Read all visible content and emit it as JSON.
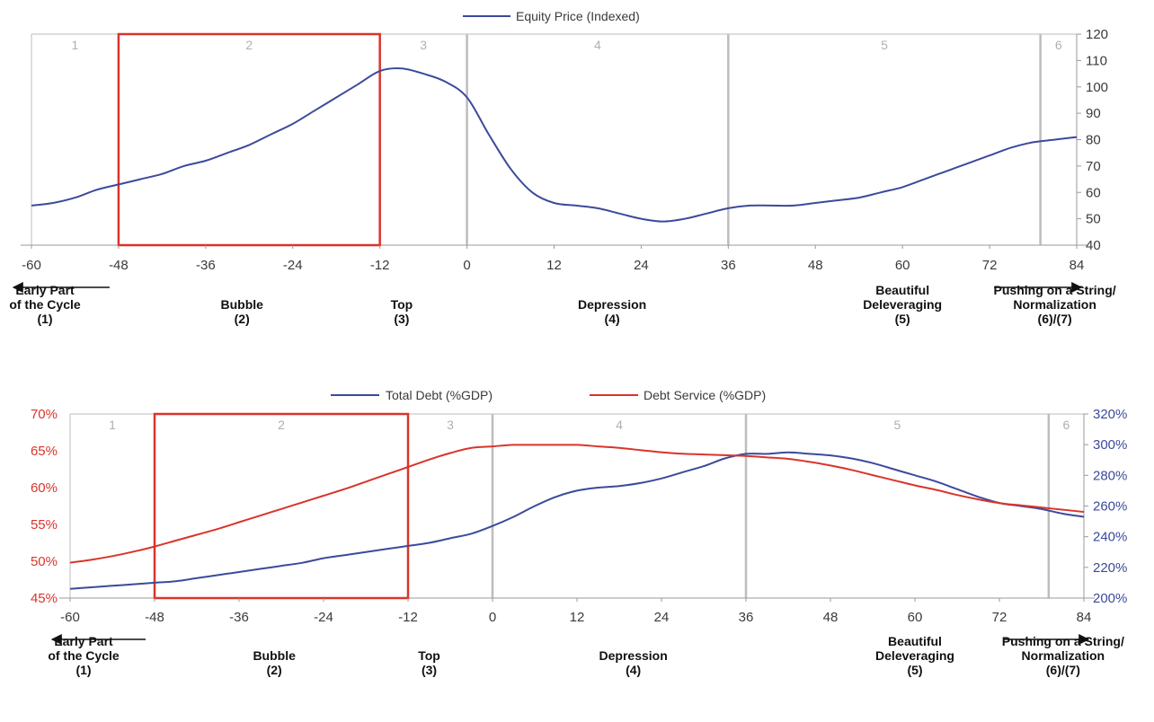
{
  "chart_data": [
    {
      "type": "line",
      "legend_placement": "top-center",
      "grid": false,
      "x": [
        -60,
        -57,
        -54,
        -51,
        -48,
        -45,
        -42,
        -39,
        -36,
        -33,
        -30,
        -27,
        -24,
        -21,
        -18,
        -15,
        -12,
        -9,
        -6,
        -3,
        0,
        3,
        6,
        9,
        12,
        15,
        18,
        21,
        24,
        27,
        30,
        33,
        36,
        39,
        42,
        45,
        48,
        51,
        54,
        57,
        60,
        63,
        66,
        69,
        72,
        75,
        78,
        81,
        84
      ],
      "series": [
        {
          "name": "Equity Price (Indexed)",
          "color": "#3c4a9b",
          "axis": "right",
          "values": [
            55,
            56,
            58,
            61,
            63,
            65,
            67,
            70,
            72,
            75,
            78,
            82,
            86,
            91,
            96,
            101,
            106,
            107,
            105,
            102,
            96,
            82,
            69,
            60,
            56,
            55,
            54,
            52,
            50,
            49,
            50,
            52,
            54,
            55,
            55,
            55,
            56,
            57,
            58,
            60,
            62,
            65,
            68,
            71,
            74,
            77,
            79,
            80,
            81
          ]
        }
      ],
      "xlim": [
        -60,
        84
      ],
      "xticks": [
        -60,
        -48,
        -36,
        -24,
        -12,
        0,
        12,
        24,
        36,
        48,
        60,
        72,
        84
      ],
      "y_right_lim": [
        40,
        120
      ],
      "y_right_ticks": [
        40,
        50,
        60,
        70,
        80,
        90,
        100,
        110,
        120
      ],
      "phases": [
        {
          "number": "1",
          "start": -60,
          "end": -48
        },
        {
          "number": "2",
          "start": -48,
          "end": -12
        },
        {
          "number": "3",
          "start": -12,
          "end": 0
        },
        {
          "number": "4",
          "start": 0,
          "end": 36
        },
        {
          "number": "5",
          "start": 36,
          "end": 79
        },
        {
          "number": "6",
          "start": 79,
          "end": 84
        }
      ],
      "highlight": {
        "start": -48,
        "end": -12,
        "color": "#d9342b"
      },
      "stage_labels": [
        {
          "lines": [
            "Early Part",
            "of the Cycle",
            "(1)"
          ],
          "x": -51,
          "arrow": "left"
        },
        {
          "lines": [
            "Bubble",
            "(2)"
          ],
          "x": -31
        },
        {
          "lines": [
            "Top",
            "(3)"
          ],
          "x": -9
        },
        {
          "lines": [
            "Depression",
            "(4)"
          ],
          "x": 20
        },
        {
          "lines": [
            "Beautiful",
            "Deleveraging",
            "(5)"
          ],
          "x": 60
        },
        {
          "lines": [
            "Pushing on a String/",
            "Normalization",
            "(6)/(7)"
          ],
          "x": 79,
          "arrow": "right"
        }
      ]
    },
    {
      "type": "line",
      "legend_placement": "top-center",
      "grid": false,
      "x": [
        -60,
        -57,
        -54,
        -51,
        -48,
        -45,
        -42,
        -39,
        -36,
        -33,
        -30,
        -27,
        -24,
        -21,
        -18,
        -15,
        -12,
        -9,
        -6,
        -3,
        0,
        3,
        6,
        9,
        12,
        15,
        18,
        21,
        24,
        27,
        30,
        33,
        36,
        39,
        42,
        45,
        48,
        51,
        54,
        57,
        60,
        63,
        66,
        69,
        72,
        75,
        78,
        81,
        84
      ],
      "series": [
        {
          "name": "Total Debt (%GDP)",
          "color": "#3c4a9b",
          "axis": "right",
          "values": [
            206,
            207,
            208,
            209,
            210,
            211,
            213,
            215,
            217,
            219,
            221,
            223,
            226,
            228,
            230,
            232,
            234,
            236,
            239,
            242,
            247,
            253,
            260,
            266,
            270,
            272,
            273,
            275,
            278,
            282,
            286,
            291,
            294,
            294,
            295,
            294,
            293,
            291,
            288,
            284,
            280,
            276,
            271,
            266,
            262,
            260,
            258,
            255,
            253
          ]
        },
        {
          "name": "Debt Service (%GDP)",
          "color": "#d9342b",
          "axis": "left",
          "values": [
            49.8,
            50.2,
            50.7,
            51.3,
            52.0,
            52.8,
            53.6,
            54.4,
            55.3,
            56.2,
            57.1,
            58.0,
            58.9,
            59.8,
            60.8,
            61.8,
            62.8,
            63.8,
            64.7,
            65.4,
            65.6,
            65.8,
            65.8,
            65.8,
            65.8,
            65.6,
            65.4,
            65.1,
            64.8,
            64.6,
            64.5,
            64.4,
            64.3,
            64.1,
            63.9,
            63.5,
            63.0,
            62.4,
            61.7,
            61.0,
            60.3,
            59.7,
            59.0,
            58.4,
            57.9,
            57.6,
            57.3,
            57.0,
            56.7
          ]
        }
      ],
      "xlim": [
        -60,
        84
      ],
      "xticks": [
        -60,
        -48,
        -36,
        -24,
        -12,
        0,
        12,
        24,
        36,
        48,
        60,
        72,
        84
      ],
      "y_left_lim": [
        45,
        70
      ],
      "y_left_ticks": [
        "45%",
        "50%",
        "55%",
        "60%",
        "65%",
        "70%"
      ],
      "y_right_lim": [
        200,
        320
      ],
      "y_right_ticks": [
        "200%",
        "220%",
        "240%",
        "260%",
        "280%",
        "300%",
        "320%"
      ],
      "phases": [
        {
          "number": "1",
          "start": -60,
          "end": -48
        },
        {
          "number": "2",
          "start": -48,
          "end": -12
        },
        {
          "number": "3",
          "start": -12,
          "end": 0
        },
        {
          "number": "4",
          "start": 0,
          "end": 36
        },
        {
          "number": "5",
          "start": 36,
          "end": 79
        },
        {
          "number": "6",
          "start": 79,
          "end": 84
        }
      ],
      "highlight": {
        "start": -48,
        "end": -12,
        "color": "#d9342b"
      },
      "stage_labels": [
        {
          "lines": [
            "Early Part",
            "of the Cycle",
            "(1)"
          ],
          "x": -51,
          "arrow": "left"
        },
        {
          "lines": [
            "Bubble",
            "(2)"
          ],
          "x": -31
        },
        {
          "lines": [
            "Top",
            "(3)"
          ],
          "x": -9
        },
        {
          "lines": [
            "Depression",
            "(4)"
          ],
          "x": 20
        },
        {
          "lines": [
            "Beautiful",
            "Deleveraging",
            "(5)"
          ],
          "x": 60
        },
        {
          "lines": [
            "Pushing on a String/",
            "Normalization",
            "(6)/(7)"
          ],
          "x": 79,
          "arrow": "right"
        }
      ]
    }
  ]
}
